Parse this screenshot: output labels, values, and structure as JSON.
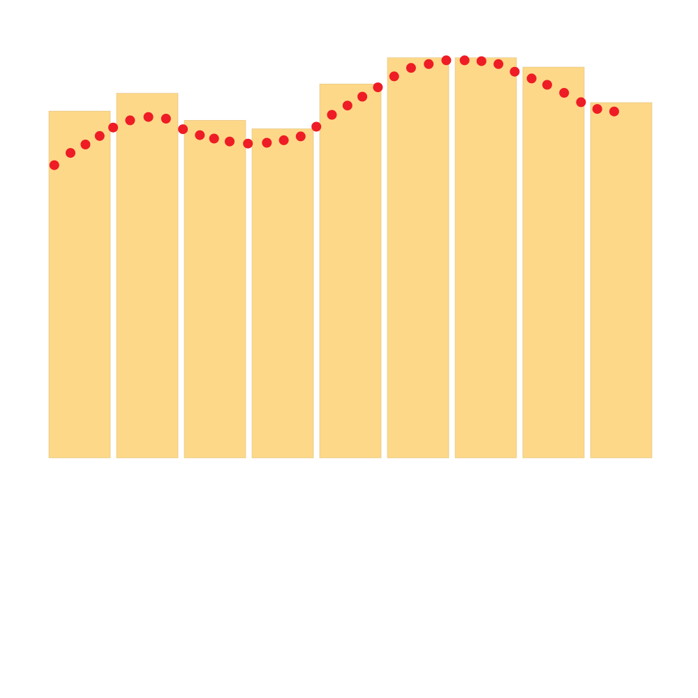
{
  "chart_data": {
    "type": "bar",
    "title": "",
    "xlabel": "",
    "ylabel": "",
    "ylim": [
      0,
      100
    ],
    "grid": false,
    "legend": "none",
    "colors": {
      "bar": "#fdd888",
      "bar_edge": "#e2c07e",
      "dot": "#ee1c25"
    },
    "bars": {
      "values": [
        82,
        86.2,
        79.8,
        77.8,
        88.4,
        94.6,
        94.6,
        92.4,
        84
      ]
    },
    "curve": {
      "type": "scatter",
      "x": [
        0.08,
        0.32,
        0.54,
        0.75,
        0.95,
        1.2,
        1.47,
        1.73,
        1.98,
        2.23,
        2.44,
        2.67,
        2.94,
        3.22,
        3.47,
        3.72,
        3.95,
        4.18,
        4.41,
        4.63,
        4.86,
        5.1,
        5.35,
        5.61,
        5.87,
        6.14,
        6.39,
        6.64,
        6.88,
        7.13,
        7.36,
        7.61,
        7.86,
        8.1,
        8.35
      ],
      "y": [
        69.2,
        72.1,
        74.1,
        76.1,
        78.1,
        79.8,
        80.6,
        80.2,
        77.7,
        76.3,
        75.5,
        74.8,
        74.3,
        74.5,
        75.1,
        76,
        78.3,
        81.1,
        83.3,
        85.4,
        87.6,
        90.2,
        92.2,
        93.1,
        94,
        94,
        93.8,
        93.1,
        91.3,
        89.7,
        88.2,
        86.3,
        84.1,
        82.5,
        81.9
      ]
    }
  }
}
